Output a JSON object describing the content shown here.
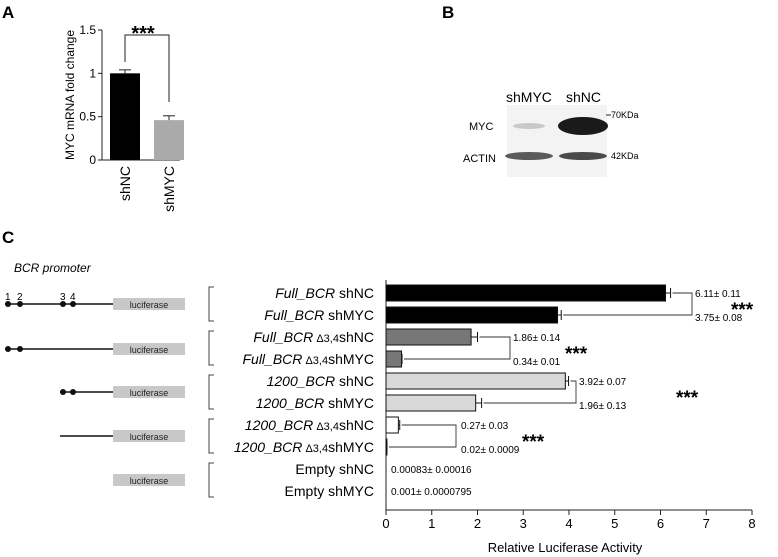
{
  "panels": {
    "a": "A",
    "b": "B",
    "c": "C"
  },
  "blot": {
    "lanes": [
      "shMYC",
      "shNC"
    ],
    "rows": [
      "MYC",
      "ACTIN"
    ],
    "markers": [
      "70KDa",
      "42KDa"
    ]
  },
  "constructs": {
    "heading": "BCR promoter",
    "site_labels": [
      "1",
      "2",
      "3",
      "4"
    ],
    "box_label": "luciferase",
    "rows": [
      {
        "line": "full",
        "dots": [
          1,
          2,
          3,
          4
        ]
      },
      {
        "line": "full",
        "dots": [
          1,
          2
        ]
      },
      {
        "line": "short",
        "dots": [
          3,
          4
        ]
      },
      {
        "line": "short",
        "dots": []
      },
      {
        "line": "none",
        "dots": []
      }
    ]
  },
  "chart_data": [
    {
      "type": "bar",
      "categories": [
        "shNC",
        "shMYC"
      ],
      "values": [
        1.0,
        0.46
      ],
      "errors": [
        0.04,
        0.05
      ],
      "colors": [
        "#000000",
        "#aaaaaa"
      ],
      "ylabel": "MYC mRNA fold change",
      "yticks": [
        "0",
        "0.5",
        "1",
        "1.5"
      ],
      "ylim": [
        0,
        1.5
      ],
      "significance": "***"
    },
    {
      "type": "bar",
      "orientation": "horizontal",
      "xlabel": "Relative Luciferase Activity",
      "xlim": [
        0,
        8
      ],
      "xticks": [
        "0",
        "1",
        "2",
        "3",
        "4",
        "5",
        "6",
        "7",
        "8"
      ],
      "categories": [
        {
          "italic": "Full_BCR",
          "sub": "",
          "suffix": " shNC"
        },
        {
          "italic": "Full_BCR",
          "sub": "",
          "suffix": " shMYC"
        },
        {
          "italic": "Full_BCR",
          "sub": " Δ3,4",
          "suffix": "shNC"
        },
        {
          "italic": "Full_BCR",
          "sub": " Δ3,4",
          "suffix": "shMYC"
        },
        {
          "italic": "1200_BCR",
          "sub": "",
          "suffix": " shNC"
        },
        {
          "italic": "1200_BCR",
          "sub": "",
          "suffix": " shMYC"
        },
        {
          "italic": "1200_BCR",
          "sub": " Δ3,4",
          "suffix": "shNC"
        },
        {
          "italic": "1200_BCR",
          "sub": " Δ3,4",
          "suffix": "shMYC"
        },
        {
          "italic": "",
          "sub": "",
          "suffix": "Empty shNC"
        },
        {
          "italic": "",
          "sub": "",
          "suffix": "Empty shMYC"
        }
      ],
      "values": [
        6.11,
        3.75,
        1.86,
        0.34,
        3.92,
        1.96,
        0.27,
        0.02,
        0.00083,
        0.001
      ],
      "errors": [
        0.11,
        0.08,
        0.14,
        0.01,
        0.07,
        0.13,
        0.03,
        0.0009,
        0.00016,
        7.95e-05
      ],
      "value_labels": [
        "6.11± 0.11",
        "3.75± 0.08",
        "1.86± 0.14",
        "0.34± 0.01",
        "3.92± 0.07",
        "1.96± 0.13",
        "0.27± 0.03",
        "0.02± 0.0009",
        "0.00083± 0.00016",
        "0.001± 0.0000795"
      ],
      "colors": [
        "#000000",
        "#000000",
        "#777777",
        "#777777",
        "#d9d9d9",
        "#d9d9d9",
        "#ffffff",
        "#ffffff",
        "#ffffff",
        "#ffffff"
      ],
      "significance": [
        "***",
        "***",
        "***",
        "***"
      ]
    }
  ]
}
